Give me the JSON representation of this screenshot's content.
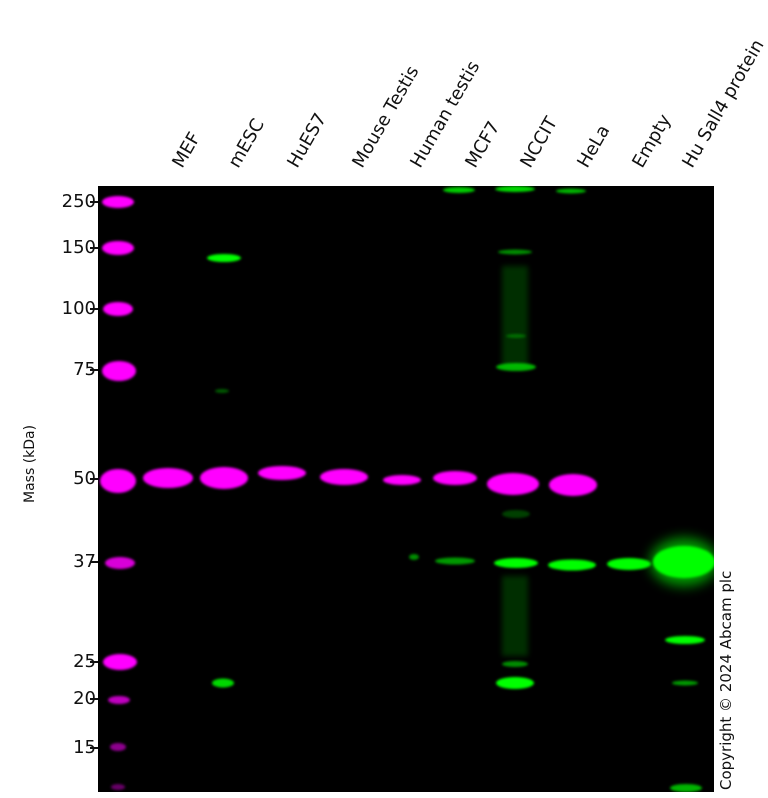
{
  "lanes": [
    "MEF",
    "mESC",
    "HuES7",
    "Mouse Testis",
    "Human testis",
    "MCF7",
    "NCCIT",
    "HeLa",
    "Empty",
    "Hu Sall4 protein"
  ],
  "y_axis_title": "Mass (kDa)",
  "markers": [
    "250",
    "150",
    "100",
    "75",
    "50",
    "37",
    "25",
    "20",
    "15"
  ],
  "copyright": "Copyright © 2024 Abcam plc",
  "colors": {
    "background": "#000000",
    "marker_magenta": "#ff00ff",
    "signal_green": "#00ff00",
    "text": "#111111"
  }
}
